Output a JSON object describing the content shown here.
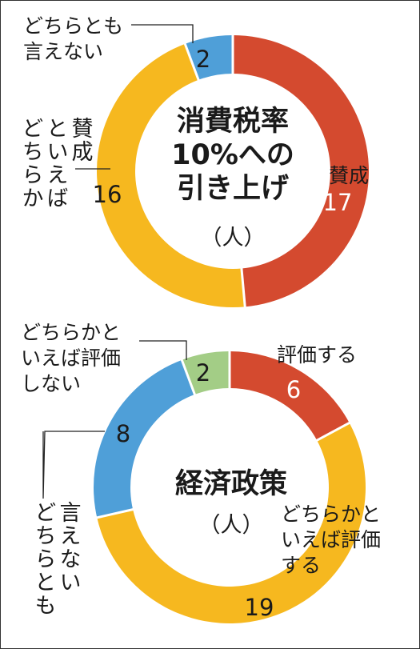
{
  "chart_data": [
    {
      "type": "pie",
      "variant": "donut",
      "title": "消費税率\n10%への\n引き上げ",
      "unit": "（人）",
      "slices": [
        {
          "label": "賛成",
          "value": 17,
          "color": "#d44a2f"
        },
        {
          "label": "どちらかといえば賛成",
          "value": 16,
          "color": "#f6b81f"
        },
        {
          "label": "どちらとも言えない",
          "value": 2,
          "color": "#4f9fd8"
        }
      ],
      "label_text": {
        "賛成": "賛成",
        "どちらかといえば賛成": "どちらか\nといえば\n賛成",
        "どちらとも言えない": "どちらとも\n言えない"
      }
    },
    {
      "type": "pie",
      "variant": "donut",
      "title": "経済政策",
      "unit": "（人）",
      "slices": [
        {
          "label": "評価する",
          "value": 6,
          "color": "#d44a2f"
        },
        {
          "label": "どちらかといえば評価する",
          "value": 19,
          "color": "#f6b81f"
        },
        {
          "label": "どちらとも言えない",
          "value": 8,
          "color": "#4f9fd8"
        },
        {
          "label": "どちらかといえば評価しない",
          "value": 2,
          "color": "#a3cd86"
        }
      ],
      "label_text": {
        "評価する": "評価する",
        "どちらかといえば評価する": "どちらかと\nいえば評価\nする",
        "どちらとも言えない": "どちらとも\n言えない",
        "どちらかといえば評価しない": "どちらかと\nいえば評価\nしない"
      }
    }
  ]
}
